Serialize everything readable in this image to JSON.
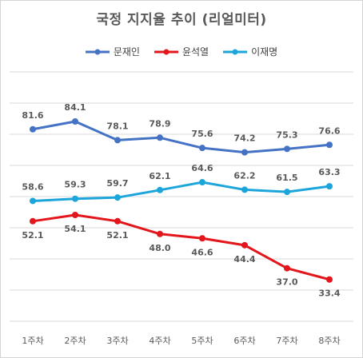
{
  "chart_data": {
    "type": "line",
    "title": "국정 지지율 추이 (리얼미터)",
    "categories": [
      "1주차",
      "2주차",
      "3주차",
      "4주차",
      "5주차",
      "6주차",
      "7주차",
      "8주차"
    ],
    "series": [
      {
        "name": "문재인",
        "color": "#4472C4",
        "values": [
          81.6,
          84.1,
          78.1,
          78.9,
          75.6,
          74.2,
          75.3,
          76.6
        ]
      },
      {
        "name": "윤석열",
        "color": "#E2161B",
        "values": [
          52.1,
          54.1,
          52.1,
          48.0,
          46.6,
          44.4,
          37.0,
          33.4
        ]
      },
      {
        "name": "이재명",
        "color": "#1BA5DB",
        "values": [
          58.6,
          59.3,
          59.7,
          62.1,
          64.6,
          62.2,
          61.5,
          63.3
        ]
      }
    ],
    "ylim": [
      20,
      100
    ],
    "grid": true,
    "legend_position": "top"
  }
}
